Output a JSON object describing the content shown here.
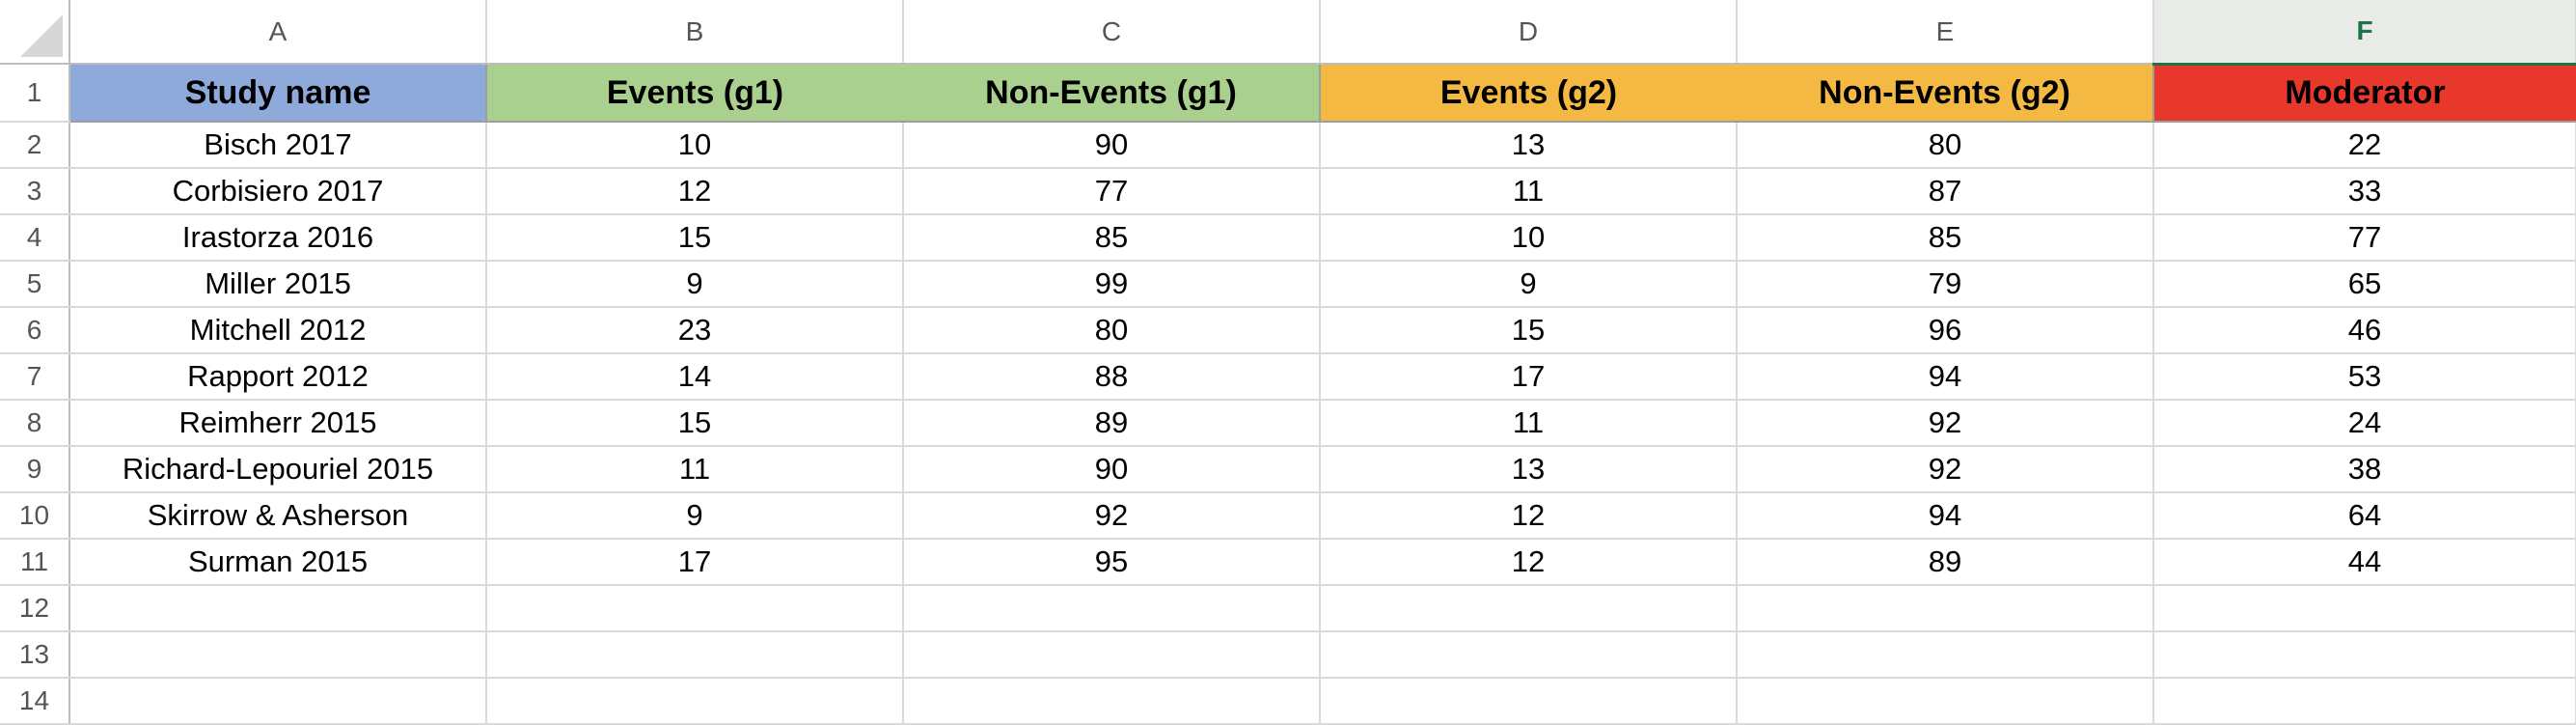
{
  "colors": {
    "header_blue": "#8eaadb",
    "header_green": "#a9d08e",
    "header_orange": "#f4b942",
    "header_red": "#e8372b",
    "selected_col_accent": "#217346"
  },
  "column_letters": [
    "A",
    "B",
    "C",
    "D",
    "E",
    "F"
  ],
  "selected_column": "F",
  "row_numbers": [
    "1",
    "2",
    "3",
    "4",
    "5",
    "6",
    "7",
    "8",
    "9",
    "10",
    "11",
    "12",
    "13",
    "14"
  ],
  "headers": [
    "Study name",
    "Events (g1)",
    "Non-Events (g1)",
    "Events (g2)",
    "Non-Events (g2)",
    "Moderator"
  ],
  "rows": [
    [
      "Bisch 2017",
      "10",
      "90",
      "13",
      "80",
      "22"
    ],
    [
      "Corbisiero 2017",
      "12",
      "77",
      "11",
      "87",
      "33"
    ],
    [
      "Irastorza 2016",
      "15",
      "85",
      "10",
      "85",
      "77"
    ],
    [
      "Miller 2015",
      "9",
      "99",
      "9",
      "79",
      "65"
    ],
    [
      "Mitchell 2012",
      "23",
      "80",
      "15",
      "96",
      "46"
    ],
    [
      "Rapport 2012",
      "14",
      "88",
      "17",
      "94",
      "53"
    ],
    [
      "Reimherr 2015",
      "15",
      "89",
      "11",
      "92",
      "24"
    ],
    [
      "Richard-Lepouriel 2015",
      "11",
      "90",
      "13",
      "92",
      "38"
    ],
    [
      "Skirrow & Asherson",
      "9",
      "92",
      "12",
      "94",
      "64"
    ],
    [
      "Surman 2015",
      "17",
      "95",
      "12",
      "89",
      "44"
    ]
  ]
}
